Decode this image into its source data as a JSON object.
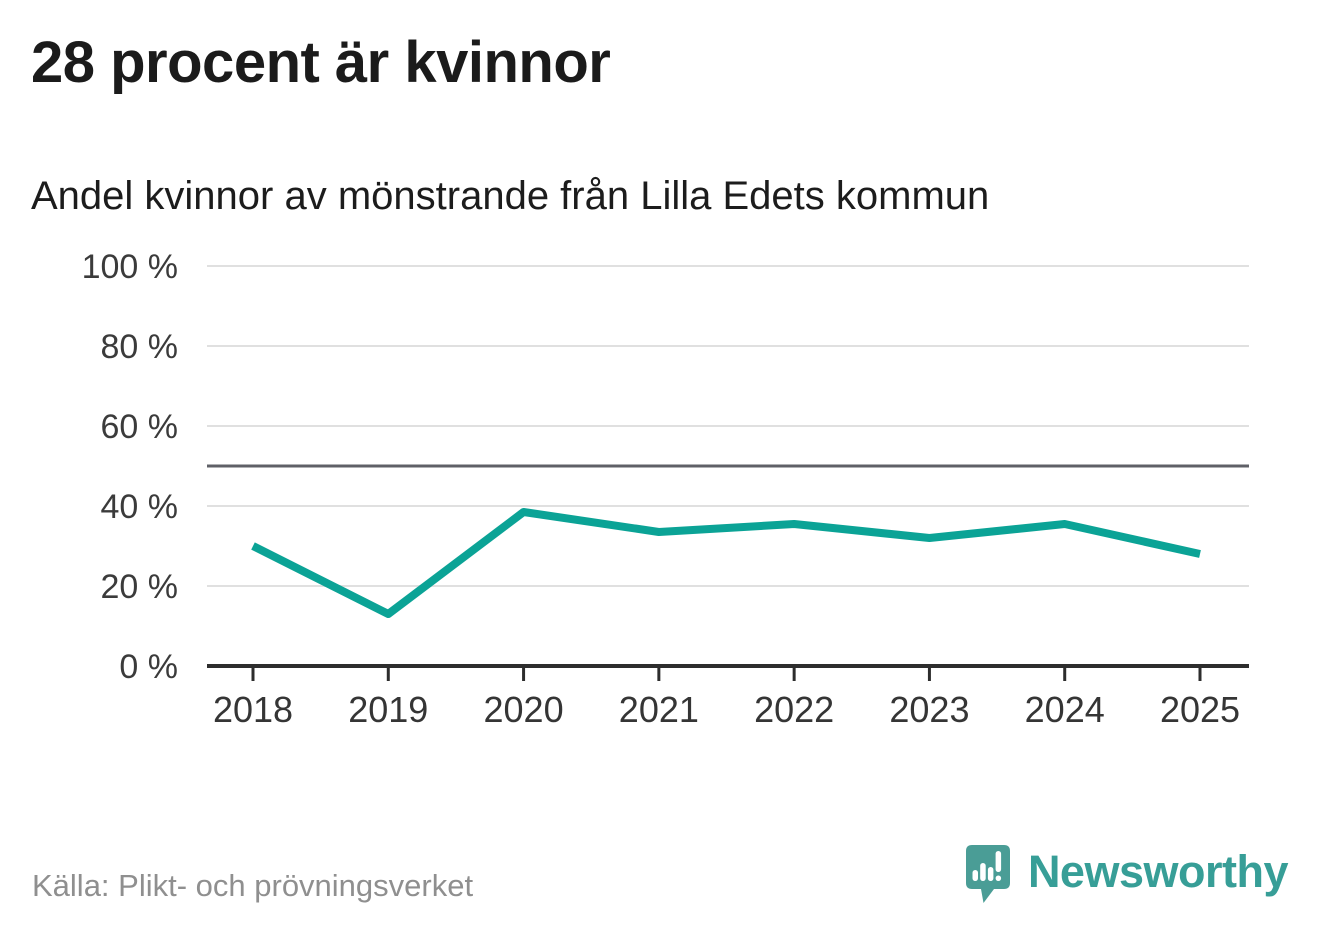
{
  "header": {
    "title": "28 procent är kvinnor",
    "subtitle": "Andel kvinnor av mönstrande från Lilla Edets kommun"
  },
  "footer": {
    "source": "Källa: Plikt- och prövningsverket",
    "brand": "Newsworthy",
    "logo_icon": "bar-chart-speech-bubble"
  },
  "colors": {
    "line": "#0ba396",
    "grid": "#e0e0e0",
    "reference_line": "#5f6067",
    "axis": "#2d2d2d",
    "axis_text": "#3b3b3b",
    "title_text": "#1b1b1b",
    "source_text": "#8f8f8f",
    "brand_teal": "#379e97",
    "logo_mark": "#4a9d96"
  },
  "chart_data": {
    "type": "line",
    "title": "28 procent är kvinnor",
    "subtitle": "Andel kvinnor av mönstrande från Lilla Edets kommun",
    "categories": [
      "2018",
      "2019",
      "2020",
      "2021",
      "2022",
      "2023",
      "2024",
      "2025"
    ],
    "series": [
      {
        "name": "Andel kvinnor av mönstrande",
        "values": [
          30,
          13,
          38.5,
          33.5,
          35.5,
          32,
          35.5,
          28
        ]
      }
    ],
    "unit": "%",
    "ylim": [
      0,
      100
    ],
    "y_ticks": [
      0,
      20,
      40,
      60,
      80,
      100
    ],
    "y_tick_labels": [
      "0 %",
      "20 %",
      "40 %",
      "60 %",
      "80 %",
      "100 %"
    ],
    "reference_line": 50,
    "grid": "horizontal",
    "legend": "none",
    "markers": "none"
  }
}
